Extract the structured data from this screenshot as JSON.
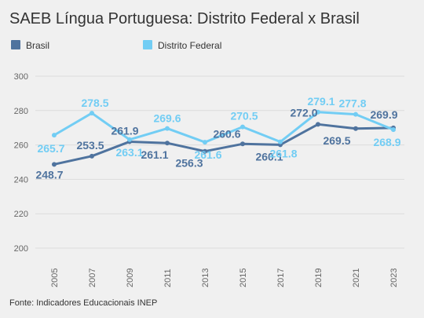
{
  "chart_data": {
    "type": "line",
    "title": "SAEB Língua Portuguesa: Distrito Federal x Brasil",
    "categories": [
      "2005",
      "2007",
      "2009",
      "2011",
      "2013",
      "2015",
      "2017",
      "2019",
      "2021",
      "2023"
    ],
    "series": [
      {
        "name": "Brasil",
        "color": "#4f739e",
        "values": [
          248.7,
          253.5,
          261.9,
          261.1,
          256.3,
          260.6,
          260.1,
          272.0,
          269.5,
          269.9
        ]
      },
      {
        "name": "Distrito Federal",
        "color": "#72cdf4",
        "values": [
          265.7,
          278.5,
          263.1,
          269.6,
          261.6,
          270.5,
          261.8,
          279.1,
          277.8,
          268.9
        ]
      }
    ],
    "y_ticks": [
      "300",
      "280",
      "260",
      "240",
      "220",
      "200"
    ],
    "ylim": [
      200,
      300
    ],
    "grid": true,
    "legend_position": "top-left",
    "xlabel": "",
    "ylabel": ""
  },
  "source": "Fonte: Indicadores Educacionais INEP"
}
